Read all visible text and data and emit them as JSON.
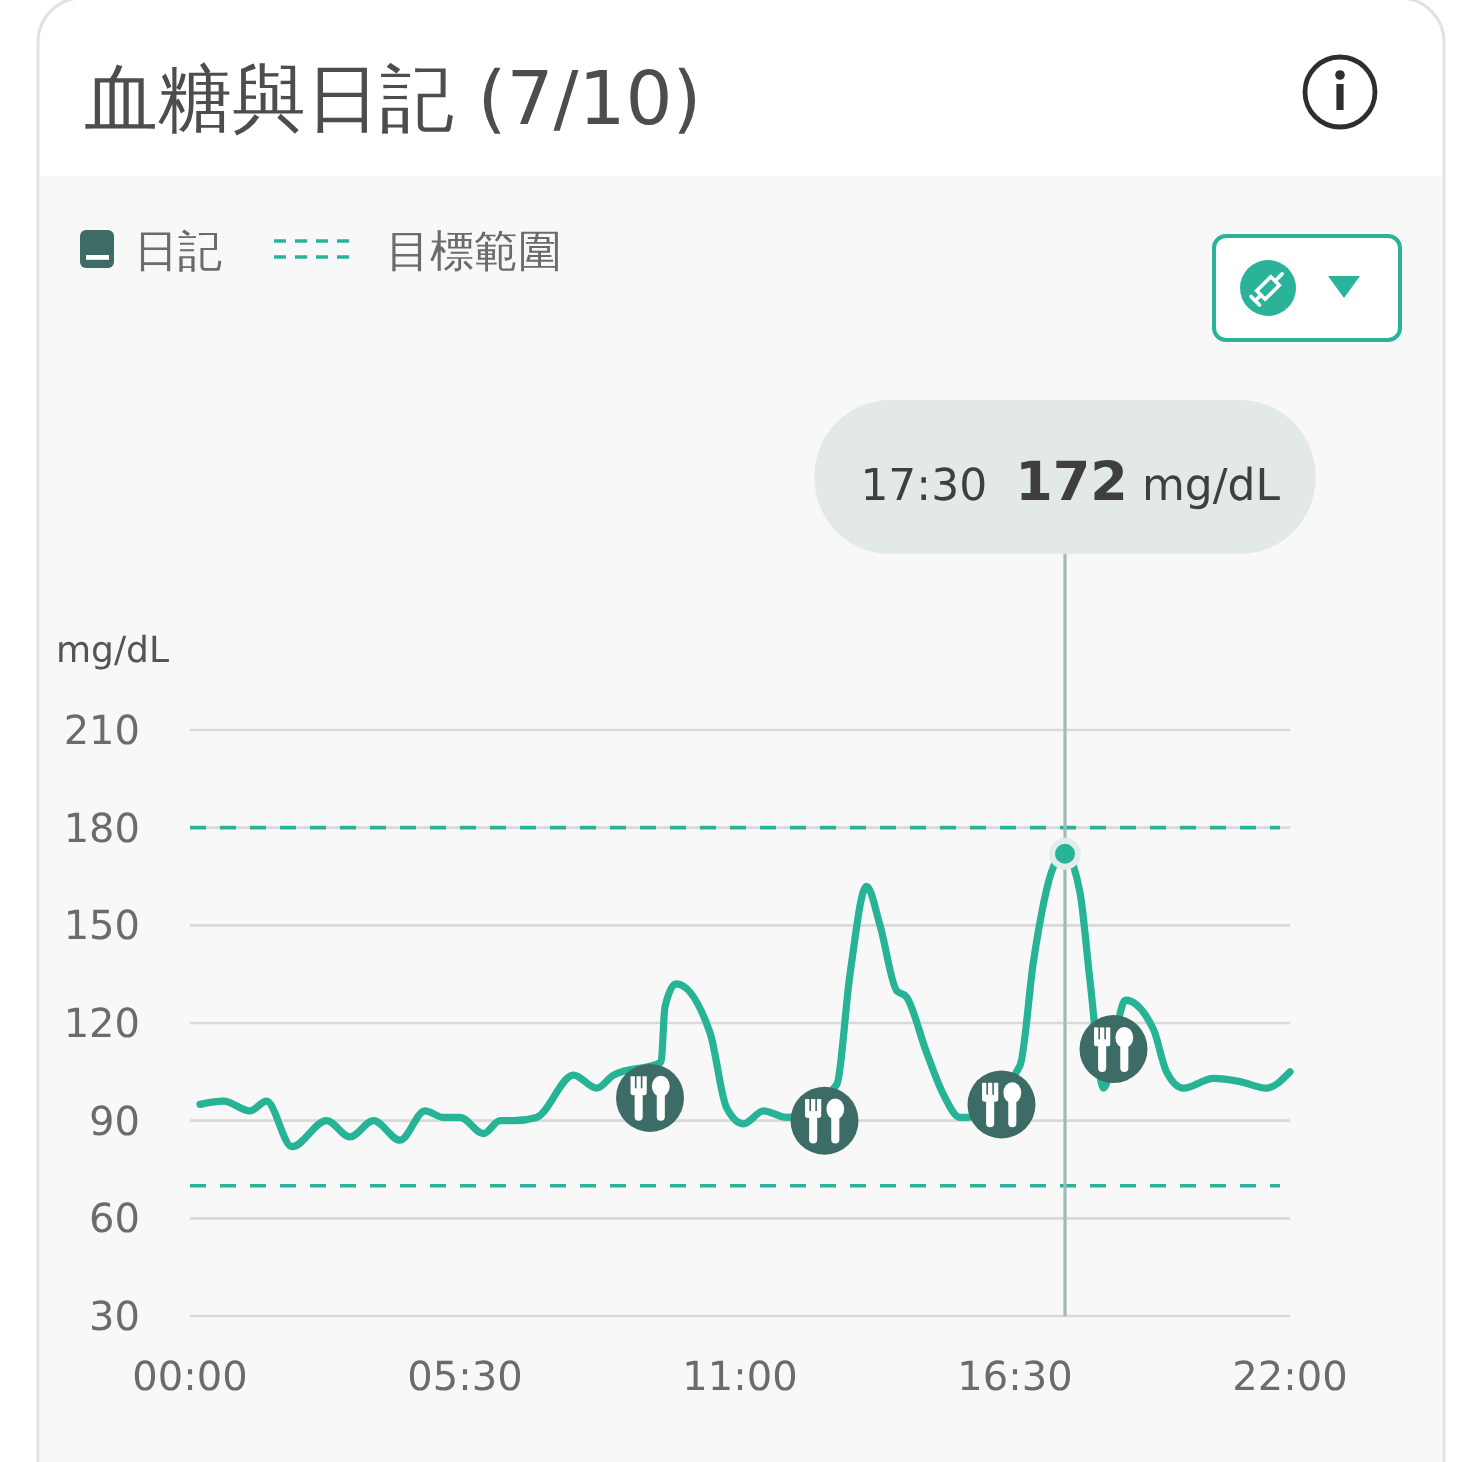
{
  "chart_data": {
    "type": "line",
    "title": "血糖與日記 (7/10)",
    "ylabel": "mg/dL",
    "xlim": [
      0,
      22
    ],
    "xticks": [
      {
        "value": 0,
        "label": "00:00"
      },
      {
        "value": 5.5,
        "label": "05:30"
      },
      {
        "value": 11,
        "label": "11:00"
      },
      {
        "value": 16.5,
        "label": "16:30"
      },
      {
        "value": 22,
        "label": "22:00"
      }
    ],
    "ylim": [
      30,
      210
    ],
    "yticks": [
      30,
      60,
      90,
      120,
      150,
      180,
      210
    ],
    "grid": "y",
    "legend": "top left",
    "series": [
      {
        "color": "#27b396",
        "x": [
          0.2,
          0.67,
          1.2,
          1.53,
          2.04,
          2.73,
          3.2,
          3.67,
          4.2,
          4.7,
          5.07,
          5.4,
          5.87,
          6.2,
          6.47,
          6.93,
          7.67,
          8.13,
          8.47,
          9.42,
          9.5,
          9.72,
          10.4,
          10.73,
          11.07,
          11.47,
          11.93,
          12.93,
          13.2,
          13.53,
          13.8,
          14.13,
          14.33,
          14.73,
          15.07,
          15.4,
          15.55,
          16.6,
          16.87,
          17.27,
          17.5,
          17.8,
          18,
          18.27,
          18.71,
          19.27,
          19.53,
          19.87,
          20.47,
          21,
          21.53,
          22
        ],
        "values": [
          95,
          96,
          93,
          96,
          82,
          90,
          85,
          90,
          84,
          93,
          91,
          91,
          86,
          90,
          90,
          91,
          104,
          100,
          104,
          108,
          125,
          132,
          117,
          94,
          89,
          93,
          91,
          101,
          135,
          162,
          150,
          130,
          128,
          111,
          98,
          91,
          91,
          107,
          139,
          168,
          172,
          160,
          133,
          100,
          127,
          118,
          105,
          100,
          103,
          102,
          100,
          105
        ]
      },
      {
        "type": "scatter",
        "name": "日記",
        "color": "#3d6b66",
        "marker": "circle",
        "x": [
          9.2,
          12.69,
          16.23,
          18.47
        ],
        "values": [
          97,
          90,
          95,
          112
        ]
      }
    ],
    "ref_lines": [
      {
        "axis": "y",
        "value": 180,
        "label": "目標範圍",
        "color": "#2bb39a",
        "line_style": "dashed"
      },
      {
        "axis": "y",
        "value": 70,
        "color": "#2bb39a",
        "line_style": "dashed"
      },
      {
        "axis": "x",
        "value": 17.5,
        "color": "#a3b9b7"
      }
    ],
    "annotations": [
      "17:30 172 mg/dL"
    ]
  }
}
